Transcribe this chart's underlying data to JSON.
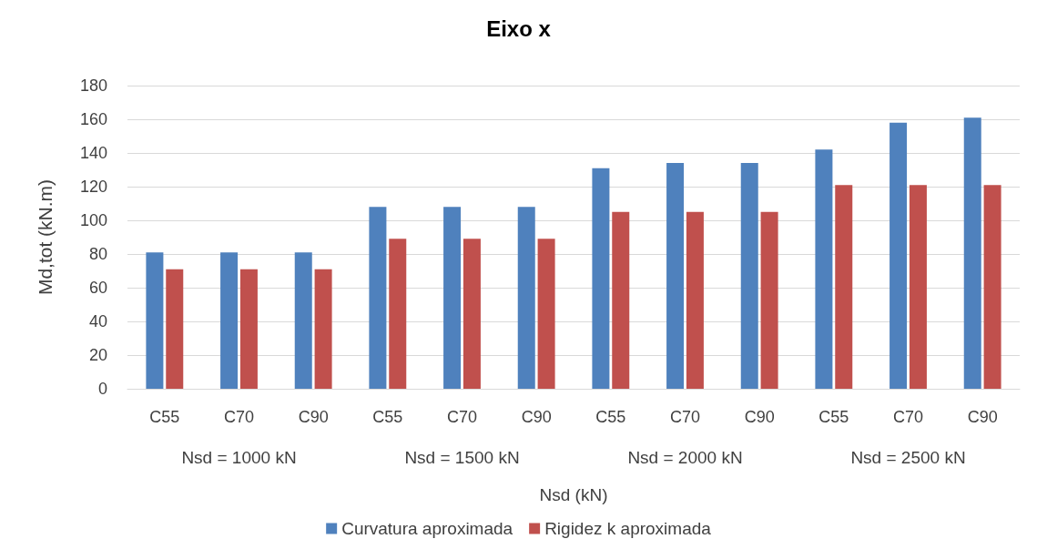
{
  "chart_data": {
    "type": "bar",
    "title": "Eixo x",
    "xlabel": "Nsd (kN)",
    "ylabel": "Md,tot (kN.m)",
    "categories": [
      "C55",
      "C70",
      "C90",
      "C55",
      "C70",
      "C90",
      "C55",
      "C70",
      "C90",
      "C55",
      "C70",
      "C90"
    ],
    "series": [
      {
        "name": "Curvatura aproximada",
        "color": "#4f81bd",
        "values": [
          81,
          81,
          81,
          108,
          108,
          108,
          131,
          134,
          134,
          142,
          158,
          161
        ]
      },
      {
        "name": "Rigidez k aproximada",
        "color": "#c0504d",
        "values": [
          71,
          71,
          71,
          89,
          89,
          89,
          105,
          105,
          105,
          121,
          121,
          121
        ]
      }
    ],
    "annotations": [
      "Nsd = 1000 kN",
      "Nsd = 1500 kN",
      "Nsd = 2000 kN",
      "Nsd = 2500 kN"
    ],
    "ylim": [
      0,
      180
    ],
    "yticks": [
      0,
      20,
      40,
      60,
      80,
      100,
      120,
      140,
      160,
      180
    ],
    "grid": "y",
    "legend": "bottom"
  }
}
